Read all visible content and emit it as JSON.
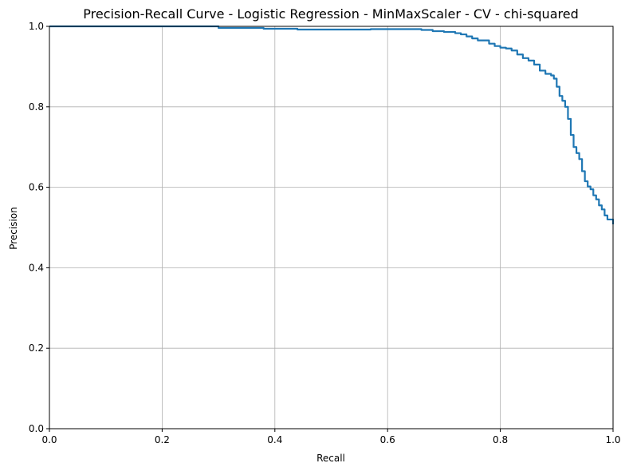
{
  "chart_data": {
    "type": "line",
    "title": "Precision-Recall Curve - Logistic Regression - MinMaxScaler - CV - chi-squared",
    "xlabel": "Recall",
    "ylabel": "Precision",
    "xlim": [
      0.0,
      1.0
    ],
    "ylim": [
      0.0,
      1.0
    ],
    "grid": true,
    "x_ticks": [
      "0.0",
      "0.2",
      "0.4",
      "0.6",
      "0.8",
      "1.0"
    ],
    "y_ticks": [
      "0.0",
      "0.2",
      "0.4",
      "0.6",
      "0.8",
      "1.0"
    ],
    "series_color": "#1f77b4",
    "series": [
      {
        "x": [
          0.0,
          0.3,
          0.3,
          0.37,
          0.38,
          0.43,
          0.44,
          0.56,
          0.57,
          0.65,
          0.66,
          0.68,
          0.7,
          0.72,
          0.73,
          0.74,
          0.75,
          0.76,
          0.78,
          0.79,
          0.8,
          0.81,
          0.82,
          0.83,
          0.84,
          0.85,
          0.86,
          0.87,
          0.88,
          0.89,
          0.895,
          0.9,
          0.905,
          0.91,
          0.915,
          0.92,
          0.925,
          0.93,
          0.935,
          0.94,
          0.945,
          0.95,
          0.955,
          0.96,
          0.965,
          0.97,
          0.975,
          0.98,
          0.985,
          0.99,
          1.0
        ],
        "y": [
          1.0,
          1.0,
          0.996,
          0.996,
          0.994,
          0.994,
          0.992,
          0.992,
          0.993,
          0.993,
          0.991,
          0.988,
          0.986,
          0.983,
          0.98,
          0.975,
          0.97,
          0.965,
          0.957,
          0.951,
          0.947,
          0.945,
          0.94,
          0.93,
          0.921,
          0.915,
          0.905,
          0.89,
          0.882,
          0.878,
          0.87,
          0.85,
          0.827,
          0.815,
          0.8,
          0.77,
          0.73,
          0.7,
          0.685,
          0.67,
          0.64,
          0.615,
          0.602,
          0.595,
          0.58,
          0.57,
          0.555,
          0.545,
          0.53,
          0.52,
          0.508
        ]
      }
    ]
  }
}
